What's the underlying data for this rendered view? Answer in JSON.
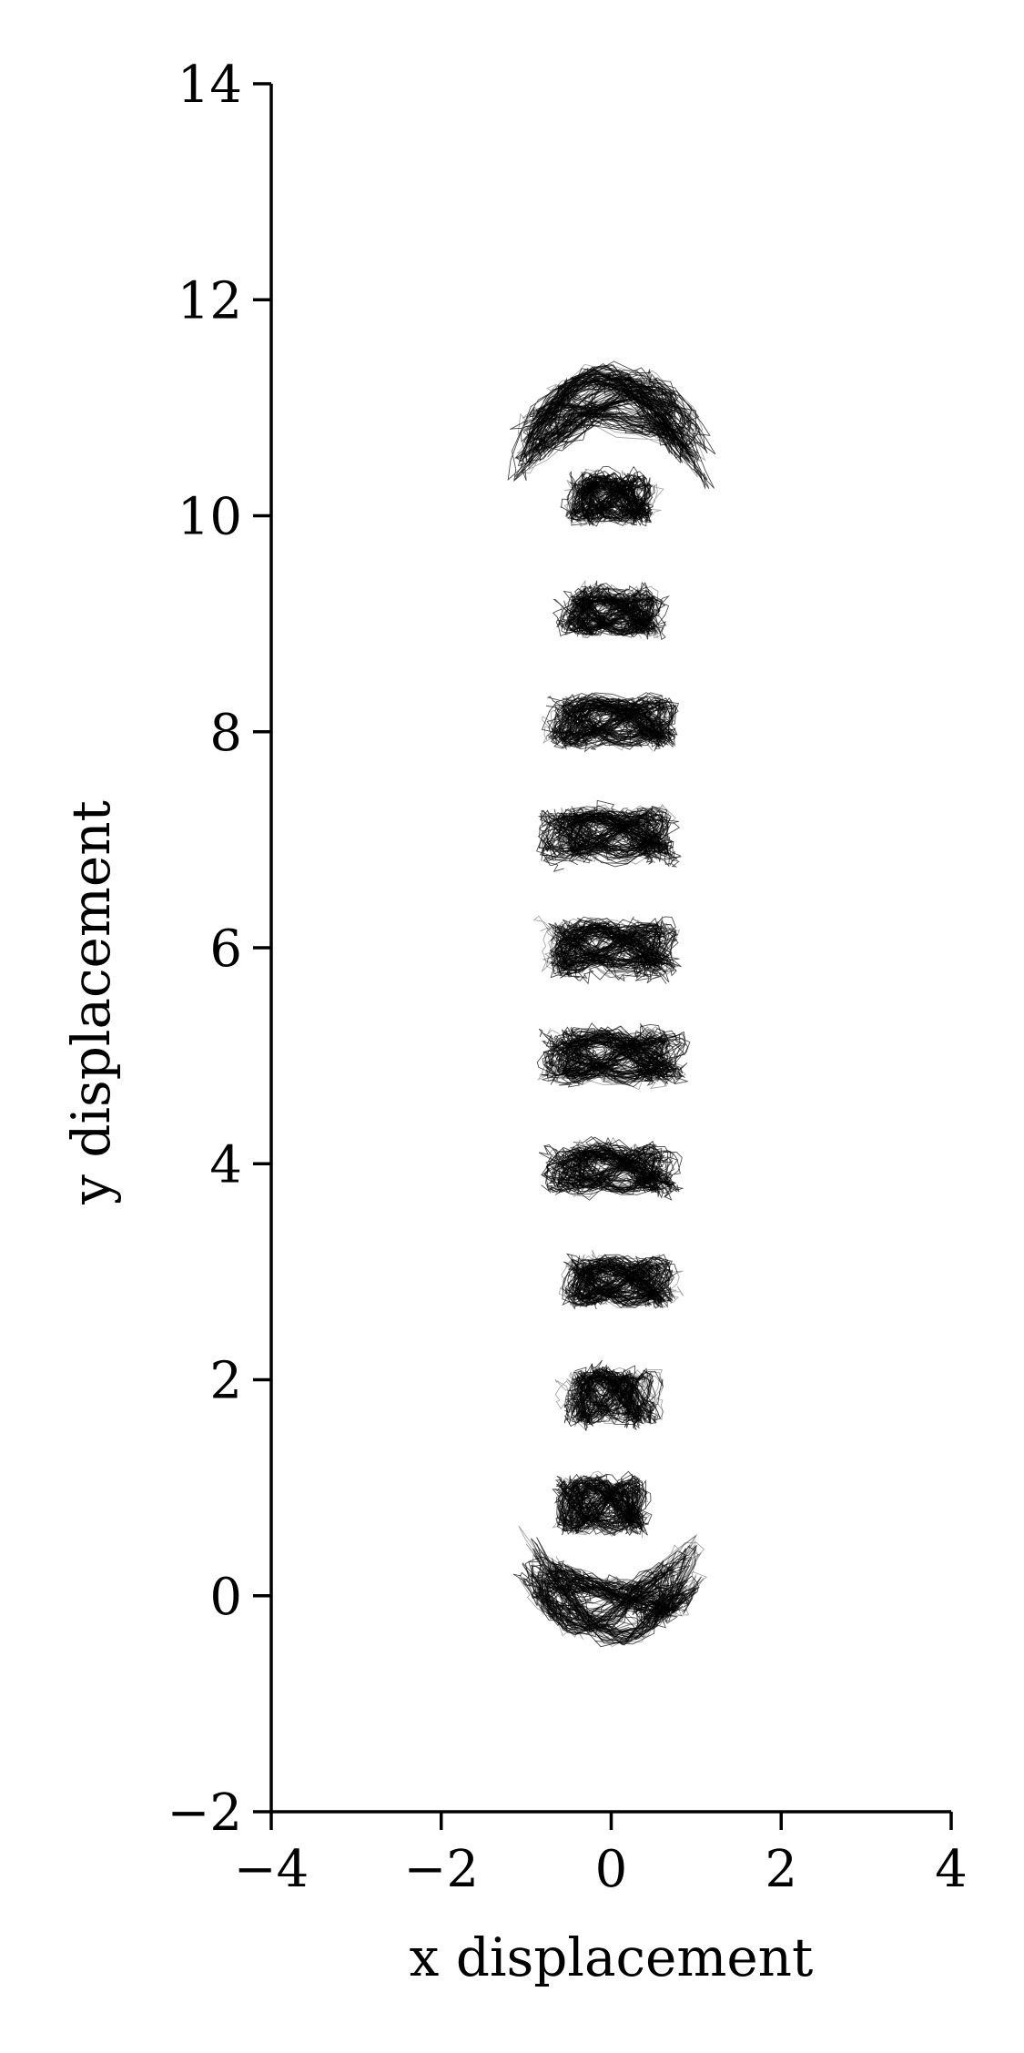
{
  "chart_data": {
    "type": "scatter",
    "title": "",
    "xlabel": "x displacement",
    "ylabel": "y displacement",
    "xlim": [
      -4,
      4
    ],
    "ylim": [
      -2,
      14
    ],
    "xticks": [
      -4,
      -2,
      0,
      2,
      4
    ],
    "yticks": [
      -2,
      0,
      2,
      4,
      6,
      8,
      10,
      12,
      14
    ],
    "xtick_labels": [
      "−4",
      "−2",
      "0",
      "2",
      "4"
    ],
    "ytick_labels": [
      "−2",
      "0",
      "2",
      "4",
      "6",
      "8",
      "10",
      "12",
      "14"
    ],
    "grid": false,
    "legend": "none",
    "trace_color": "#000000",
    "description_of_marks": "dense clusters of many thin noisy trajectories around each mean position",
    "clusters": [
      {
        "cx": 0.0,
        "cy": -0.15,
        "half_width": 1.0,
        "half_height": 0.3,
        "curvature": 0.45
      },
      {
        "cx": -0.1,
        "cy": 0.85,
        "half_width": 0.5,
        "half_height": 0.25,
        "curvature": 0.0
      },
      {
        "cx": 0.0,
        "cy": 1.85,
        "half_width": 0.5,
        "half_height": 0.25,
        "curvature": 0.0
      },
      {
        "cx": 0.1,
        "cy": 2.9,
        "half_width": 0.6,
        "half_height": 0.22,
        "curvature": 0.0
      },
      {
        "cx": 0.0,
        "cy": 3.95,
        "half_width": 0.7,
        "half_height": 0.22,
        "curvature": 0.0
      },
      {
        "cx": 0.0,
        "cy": 5.0,
        "half_width": 0.8,
        "half_height": 0.24,
        "curvature": 0.0
      },
      {
        "cx": 0.0,
        "cy": 6.0,
        "half_width": 0.75,
        "half_height": 0.25,
        "curvature": 0.0
      },
      {
        "cx": 0.0,
        "cy": 7.05,
        "half_width": 0.75,
        "half_height": 0.24,
        "curvature": 0.0
      },
      {
        "cx": 0.0,
        "cy": 8.1,
        "half_width": 0.7,
        "half_height": 0.22,
        "curvature": 0.0
      },
      {
        "cx": 0.0,
        "cy": 9.1,
        "half_width": 0.55,
        "half_height": 0.22,
        "curvature": 0.0
      },
      {
        "cx": 0.0,
        "cy": 10.15,
        "half_width": 0.5,
        "half_height": 0.22,
        "curvature": 0.0
      },
      {
        "cx": 0.0,
        "cy": 11.1,
        "half_width": 1.05,
        "half_height": 0.3,
        "curvature": -0.45
      }
    ]
  }
}
